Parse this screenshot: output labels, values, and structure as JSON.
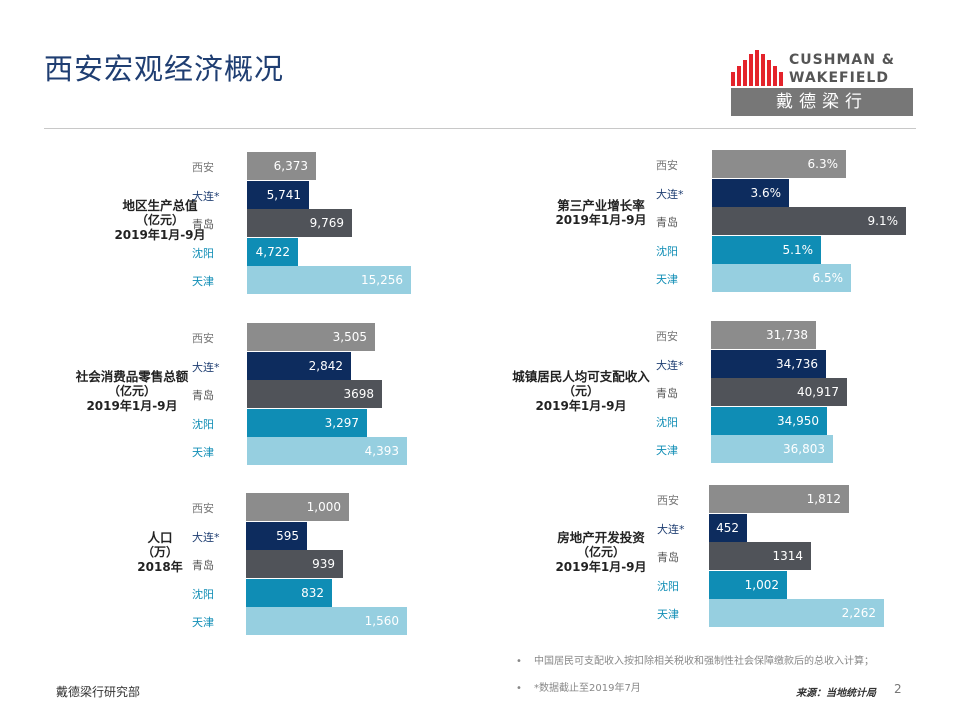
{
  "page": {
    "title": "西安宏观经济概况",
    "page_number": "2"
  },
  "logo": {
    "line1": "CUSHMAN &",
    "line2": "WAKEFIELD",
    "cn": "戴德梁行",
    "brand_color": "#e4232b"
  },
  "cities": [
    "西安",
    "大连*",
    "青岛",
    "沈阳",
    "天津"
  ],
  "city_colors": [
    "#8c8c8c",
    "#0d2c5e",
    "#505359",
    "#0f8db5",
    "#96cfe0"
  ],
  "label_colors": [
    "#777777",
    "#1f3e72",
    "#555555",
    "#0f8db5",
    "#0f8db5"
  ],
  "chart_data": [
    {
      "id": "gdp",
      "type": "bar",
      "orientation": "horizontal",
      "title": [
        "地区生产总值",
        "（亿元）",
        "2019年1月-9月"
      ],
      "categories": [
        "西安",
        "大连*",
        "青岛",
        "沈阳",
        "天津"
      ],
      "values": [
        6373,
        5741,
        9769,
        4722,
        15256
      ],
      "labels": [
        "6,373",
        "5,741",
        "9,769",
        "4,722",
        "15,256"
      ],
      "xlim": [
        0,
        15256
      ]
    },
    {
      "id": "tertiary",
      "type": "bar",
      "orientation": "horizontal",
      "title": [
        "第三产业增长率",
        "2019年1月-9月"
      ],
      "categories": [
        "西安",
        "大连*",
        "青岛",
        "沈阳",
        "天津"
      ],
      "values": [
        6.3,
        3.6,
        9.1,
        5.1,
        6.5
      ],
      "labels": [
        "6.3%",
        "3.6%",
        "9.1%",
        "5.1%",
        "6.5%"
      ],
      "xlim": [
        0,
        9.1
      ]
    },
    {
      "id": "retail",
      "type": "bar",
      "orientation": "horizontal",
      "title": [
        "社会消费品零售总额",
        "（亿元）",
        "2019年1月-9月"
      ],
      "categories": [
        "西安",
        "大连*",
        "青岛",
        "沈阳",
        "天津"
      ],
      "values": [
        3505,
        2842,
        3698,
        3297,
        4393
      ],
      "labels": [
        "3,505",
        "2,842",
        "3698",
        "3,297",
        "4,393"
      ],
      "xlim": [
        0,
        4393
      ]
    },
    {
      "id": "income",
      "type": "bar",
      "orientation": "horizontal",
      "title": [
        "城镇居民人均可支配收入",
        "（元）",
        "2019年1月-9月"
      ],
      "categories": [
        "西安",
        "大连*",
        "青岛",
        "沈阳",
        "天津"
      ],
      "values": [
        31738,
        34736,
        40917,
        34950,
        36803
      ],
      "labels": [
        "31,738",
        "34,736",
        "40,917",
        "34,950",
        "36,803"
      ],
      "xlim": [
        0,
        40917
      ]
    },
    {
      "id": "population",
      "type": "bar",
      "orientation": "horizontal",
      "title": [
        "人口",
        "（万）",
        "2018年"
      ],
      "categories": [
        "西安",
        "大连*",
        "青岛",
        "沈阳",
        "天津"
      ],
      "values": [
        1000,
        595,
        939,
        832,
        1560
      ],
      "labels": [
        "1,000",
        "595",
        "939",
        "832",
        "1,560"
      ],
      "xlim": [
        0,
        1560
      ]
    },
    {
      "id": "realestate",
      "type": "bar",
      "orientation": "horizontal",
      "title": [
        "房地产开发投资",
        "（亿元）",
        "2019年1月-9月"
      ],
      "categories": [
        "西安",
        "大连*",
        "青岛",
        "沈阳",
        "天津"
      ],
      "values": [
        1812,
        452,
        1314,
        1002,
        2262
      ],
      "labels": [
        "1,812",
        "452",
        "1314",
        "1,002",
        "2,262"
      ],
      "xlim": [
        0,
        2262
      ]
    }
  ],
  "footnotes": {
    "bullet": "•",
    "note1": "中国居民可支配收入按扣除相关税收和强制性社会保障缴款后的总收入计算；",
    "note2": "*数据截止至2019年7月"
  },
  "footer": {
    "dept": "戴德梁行研究部",
    "source": "来源：当地统计局"
  }
}
